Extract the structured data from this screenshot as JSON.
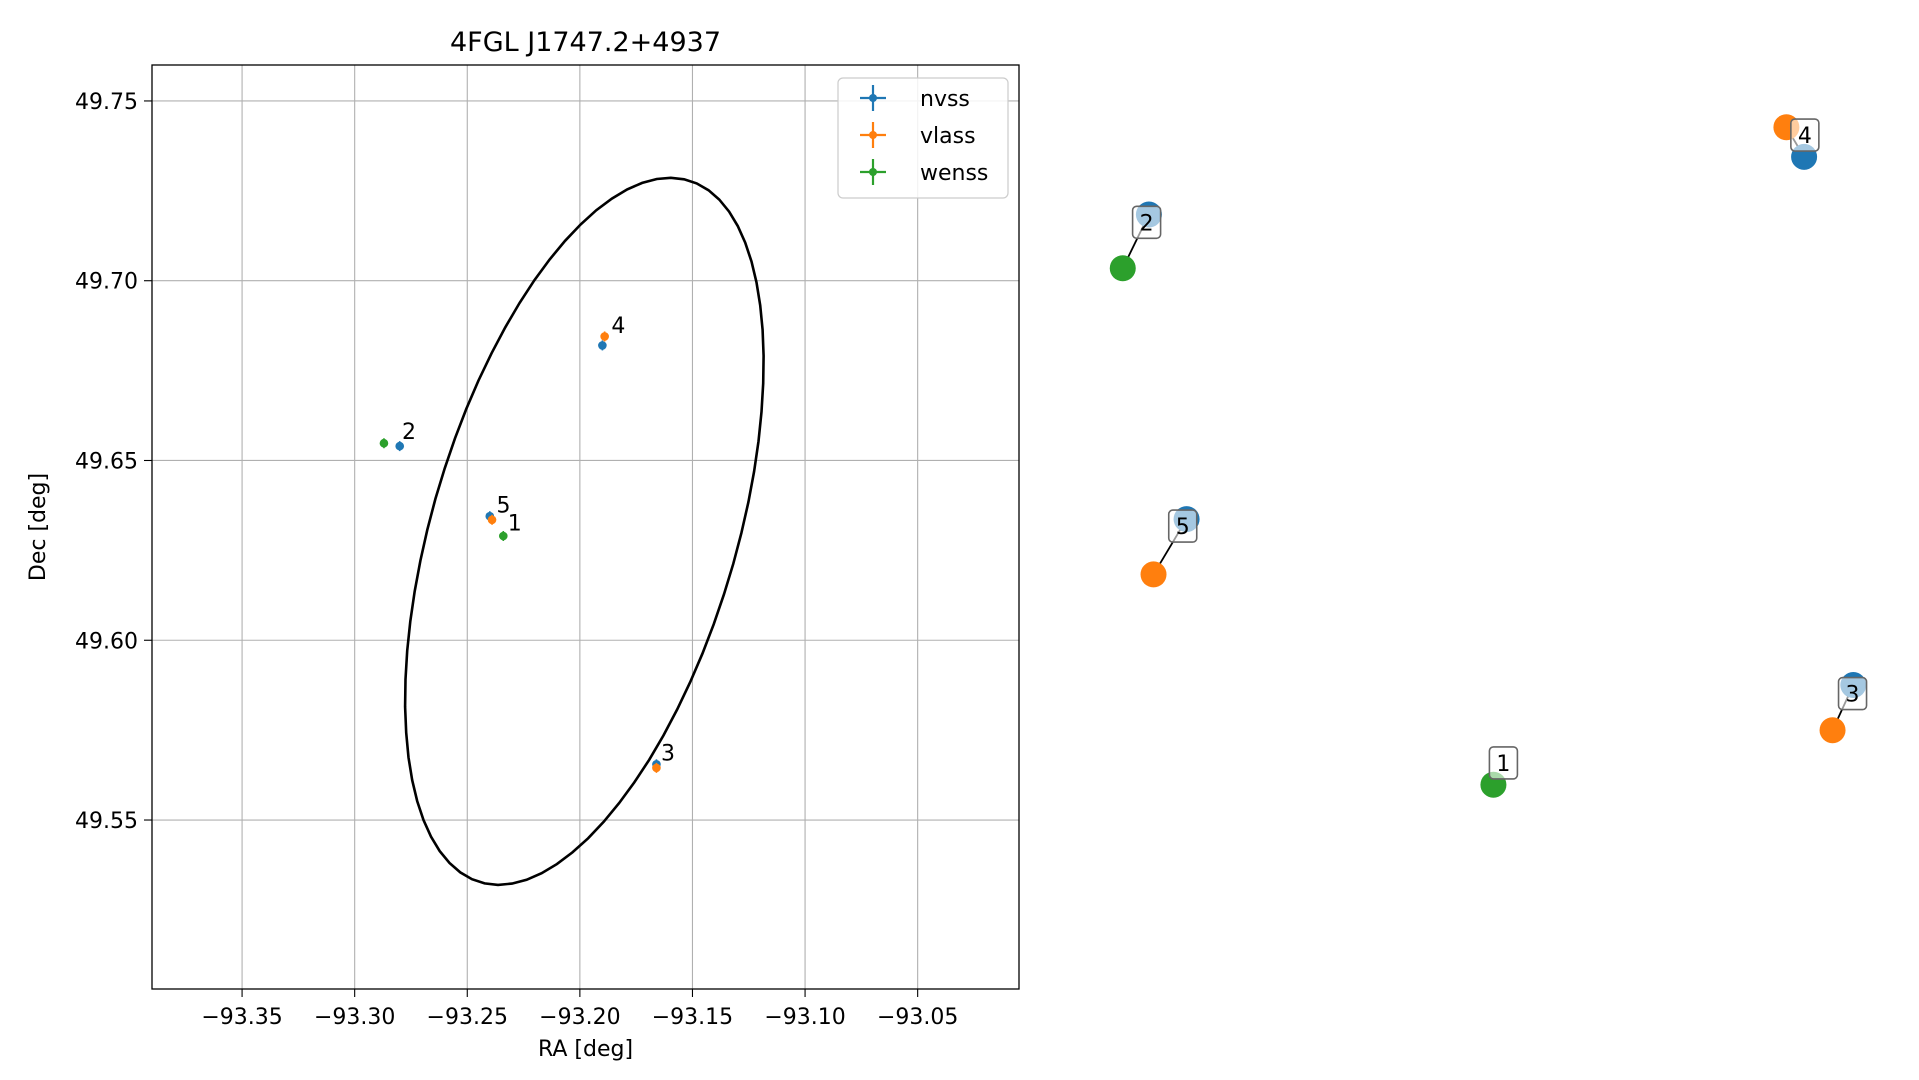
{
  "chart_data": [
    {
      "type": "scatter",
      "title": "4FGL J1747.2+4937",
      "xlabel": "RA [deg]",
      "ylabel": "Dec [deg]",
      "xlim": [
        -93.39,
        -93.005
      ],
      "ylim": [
        49.503,
        49.76
      ],
      "xticks": [
        -93.35,
        -93.3,
        -93.25,
        -93.2,
        -93.15,
        -93.1,
        -93.05
      ],
      "xtick_labels": [
        "−93.35",
        "−93.30",
        "−93.25",
        "−93.20",
        "−93.15",
        "−93.10",
        "−93.05"
      ],
      "yticks": [
        49.55,
        49.6,
        49.65,
        49.7,
        49.75
      ],
      "ytick_labels": [
        "49.55",
        "49.60",
        "49.65",
        "49.70",
        "49.75"
      ],
      "grid": true,
      "legend_position": "top-right",
      "series": [
        {
          "name": "nvss",
          "color": "#1f77b4",
          "points": [
            {
              "x": -93.28,
              "y": 49.654
            },
            {
              "x": -93.19,
              "y": 49.682
            },
            {
              "x": -93.166,
              "y": 49.5655
            },
            {
              "x": -93.24,
              "y": 49.6345
            }
          ]
        },
        {
          "name": "vlass",
          "color": "#ff7f0e",
          "points": [
            {
              "x": -93.189,
              "y": 49.6845
            },
            {
              "x": -93.166,
              "y": 49.5645
            },
            {
              "x": -93.239,
              "y": 49.6335
            }
          ]
        },
        {
          "name": "wenss",
          "color": "#2ca02c",
          "points": [
            {
              "x": -93.287,
              "y": 49.6548
            },
            {
              "x": -93.234,
              "y": 49.629
            }
          ]
        }
      ],
      "annotations": [
        {
          "text": "1",
          "x": -93.232,
          "y": 49.6305
        },
        {
          "text": "2",
          "x": -93.279,
          "y": 49.656
        },
        {
          "text": "3",
          "x": -93.164,
          "y": 49.5665
        },
        {
          "text": "4",
          "x": -93.186,
          "y": 49.6855
        },
        {
          "text": "5",
          "x": -93.237,
          "y": 49.6355
        }
      ],
      "ellipse": {
        "center": [
          -93.198,
          49.6303
        ],
        "semi_major": 0.11,
        "semi_minor": 0.0625,
        "angle_deg": 57,
        "color": "#000000"
      }
    },
    {
      "type": "scatter",
      "xlim": [
        0,
        1
      ],
      "ylim": [
        0,
        1
      ],
      "groups": [
        {
          "label": "1",
          "points": [
            {
              "x": 0.522,
              "y": 0.13,
              "color": "#2ca02c"
            }
          ],
          "label_pos": {
            "x": 0.535,
            "y": 0.158
          }
        },
        {
          "label": "2",
          "points": [
            {
              "x": 0.074,
              "y": 0.862,
              "color": "#1f77b4"
            },
            {
              "x": 0.04,
              "y": 0.793,
              "color": "#2ca02c"
            }
          ],
          "label_pos": {
            "x": 0.071,
            "y": 0.852
          }
        },
        {
          "label": "3",
          "points": [
            {
              "x": 0.99,
              "y": 0.258,
              "color": "#1f77b4"
            },
            {
              "x": 0.963,
              "y": 0.2,
              "color": "#ff7f0e"
            }
          ],
          "label_pos": {
            "x": 0.989,
            "y": 0.247
          }
        },
        {
          "label": "4",
          "points": [
            {
              "x": 0.926,
              "y": 0.936,
              "color": "#1f77b4"
            },
            {
              "x": 0.903,
              "y": 0.974,
              "color": "#ff7f0e"
            }
          ],
          "label_pos": {
            "x": 0.927,
            "y": 0.964
          }
        },
        {
          "label": "5",
          "points": [
            {
              "x": 0.123,
              "y": 0.471,
              "color": "#1f77b4"
            },
            {
              "x": 0.08,
              "y": 0.4,
              "color": "#ff7f0e"
            }
          ],
          "label_pos": {
            "x": 0.118,
            "y": 0.462
          }
        }
      ]
    }
  ]
}
